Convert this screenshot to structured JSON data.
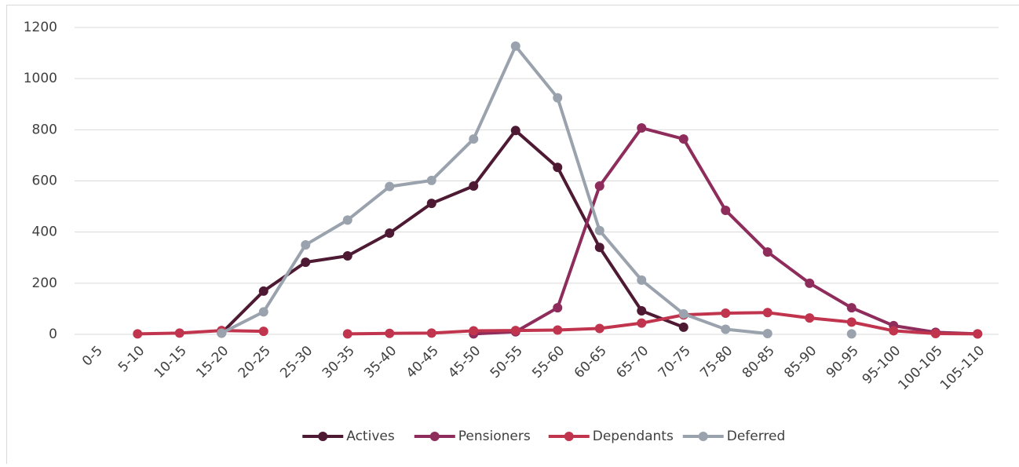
{
  "chart_data": {
    "type": "line",
    "categories": [
      "0-5",
      "5-10",
      "10-15",
      "15-20",
      "20-25",
      "25-30",
      "30-35",
      "35-40",
      "40-45",
      "45-50",
      "50-55",
      "55-60",
      "60-65",
      "65-70",
      "70-75",
      "75-80",
      "80-85",
      "85-90",
      "90-95",
      "95-100",
      "100-105",
      "105-110"
    ],
    "series": [
      {
        "name": "Actives",
        "color": "#4e1a33",
        "values": [
          null,
          null,
          null,
          5,
          169,
          282,
          307,
          396,
          512,
          580,
          797,
          653,
          340,
          92,
          28,
          null,
          null,
          null,
          null,
          null,
          null,
          null
        ]
      },
      {
        "name": "Pensioners",
        "color": "#8e2c5c",
        "values": [
          null,
          null,
          null,
          null,
          null,
          null,
          null,
          null,
          null,
          2,
          10,
          104,
          580,
          807,
          764,
          485,
          322,
          200,
          104,
          34,
          8,
          2
        ]
      },
      {
        "name": "Dependants",
        "color": "#c0344d",
        "values": [
          null,
          2,
          5,
          15,
          12,
          null,
          2,
          4,
          5,
          14,
          15,
          17,
          23,
          44,
          76,
          83,
          85,
          64,
          48,
          14,
          3,
          2
        ]
      },
      {
        "name": "Deferred",
        "color": "#9aa3ad",
        "values": [
          null,
          null,
          null,
          5,
          88,
          350,
          447,
          578,
          602,
          764,
          1127,
          925,
          406,
          212,
          80,
          20,
          3,
          null,
          2,
          null,
          null,
          null
        ]
      }
    ],
    "ylim": [
      0,
      1200
    ],
    "yticks": [
      0,
      200,
      400,
      600,
      800,
      1000,
      1200
    ],
    "grid": true,
    "legend": "bottom"
  }
}
